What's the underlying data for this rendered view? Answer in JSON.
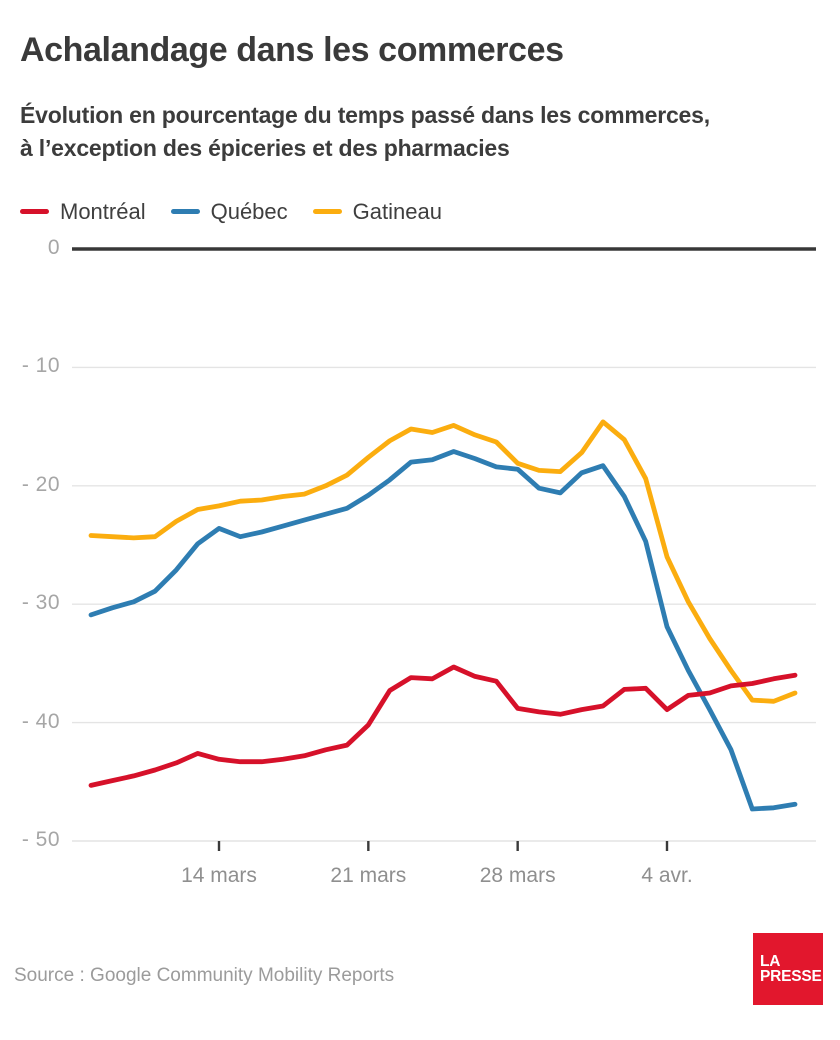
{
  "header": {
    "title": "Achalandage dans les commerces",
    "subtitle_lines": [
      "Évolution en pourcentage du temps passé dans les commerces,",
      "à l’exception des épiceries et des pharmacies"
    ]
  },
  "footer": {
    "source": "Source : Google Community Mobility Reports",
    "logo": {
      "line1": "LA",
      "line2": "PRESSE",
      "background": "#e2172d",
      "text_color": "#ffffff"
    }
  },
  "chart_data": {
    "type": "line",
    "title": "Achalandage dans les commerces",
    "subtitle": "Évolution en pourcentage du temps passé dans les commerces, à l’exception des épiceries et des pharmacies",
    "unit": "%",
    "ylim": [
      -50,
      0
    ],
    "grid": "horizontal",
    "legend_position": "top",
    "x_dates": [
      "8 mars",
      "9 mars",
      "10 mars",
      "11 mars",
      "12 mars",
      "13 mars",
      "14 mars",
      "15 mars",
      "16 mars",
      "17 mars",
      "18 mars",
      "19 mars",
      "20 mars",
      "21 mars",
      "22 mars",
      "23 mars",
      "24 mars",
      "25 mars",
      "26 mars",
      "27 mars",
      "28 mars",
      "29 mars",
      "30 mars",
      "31 mars",
      "1 avr.",
      "2 avr.",
      "3 avr.",
      "4 avr.",
      "5 avr.",
      "6 avr.",
      "7 avr.",
      "8 avr.",
      "9 avr.",
      "10 avr."
    ],
    "series": [
      {
        "id": "montreal",
        "name": "Montréal",
        "color": "#d6112a",
        "values": [
          -45.3,
          -44.9,
          -44.5,
          -44.0,
          -43.4,
          -42.6,
          -43.1,
          -43.3,
          -43.3,
          -43.1,
          -42.8,
          -42.3,
          -41.9,
          -40.2,
          -37.3,
          -36.2,
          -36.3,
          -35.3,
          -36.1,
          -36.5,
          -38.8,
          -39.1,
          -39.3,
          -38.9,
          -38.6,
          -37.2,
          -37.1,
          -38.9,
          -37.7,
          -37.5,
          -36.9,
          -36.7,
          -36.3,
          -36.0
        ]
      },
      {
        "id": "quebec",
        "name": "Québec",
        "color": "#2e7db2",
        "values": [
          -30.9,
          -30.3,
          -29.8,
          -28.9,
          -27.1,
          -24.9,
          -23.6,
          -24.3,
          -23.9,
          -23.4,
          -22.9,
          -22.4,
          -21.9,
          -20.8,
          -19.5,
          -18.0,
          -17.8,
          -17.1,
          -17.7,
          -18.4,
          -18.6,
          -20.2,
          -20.6,
          -18.9,
          -18.3,
          -20.9,
          -24.7,
          -31.9,
          -35.6,
          -38.9,
          -42.3,
          -47.3,
          -47.2,
          -46.9
        ]
      },
      {
        "id": "gatineau",
        "name": "Gatineau",
        "color": "#fbad0f",
        "values": [
          -24.2,
          -24.3,
          -24.4,
          -24.3,
          -23.0,
          -22.0,
          -21.7,
          -21.3,
          -21.2,
          -20.9,
          -20.7,
          -20.0,
          -19.1,
          -17.6,
          -16.2,
          -15.2,
          -15.5,
          -14.9,
          -15.7,
          -16.3,
          -18.1,
          -18.7,
          -18.8,
          -17.2,
          -14.6,
          -16.1,
          -19.4,
          -26.0,
          -29.8,
          -32.9,
          -35.6,
          -38.1,
          -38.2,
          -37.5
        ]
      }
    ],
    "y_ticks": [
      {
        "label": "0",
        "value": 0
      },
      {
        "label": "- 10",
        "value": -10
      },
      {
        "label": "- 20",
        "value": -20
      },
      {
        "label": "- 30",
        "value": -30
      },
      {
        "label": "- 40",
        "value": -40
      },
      {
        "label": "- 50",
        "value": -50
      }
    ],
    "x_ticks": [
      {
        "label": "14 mars",
        "day": 6
      },
      {
        "label": "21 mars",
        "day": 13
      },
      {
        "label": "28 mars",
        "day": 20
      },
      {
        "label": "4 avr.",
        "day": 27
      }
    ]
  },
  "style": {
    "grid_color": "#e4e4e4",
    "zero_line_color": "#383838",
    "tick_color": "#3a3a3a",
    "y_label_color": "#a6a6a6",
    "x_label_color": "#8f8f8f",
    "title_color": "#3a3a3a",
    "source_color": "#9b9b9b"
  }
}
